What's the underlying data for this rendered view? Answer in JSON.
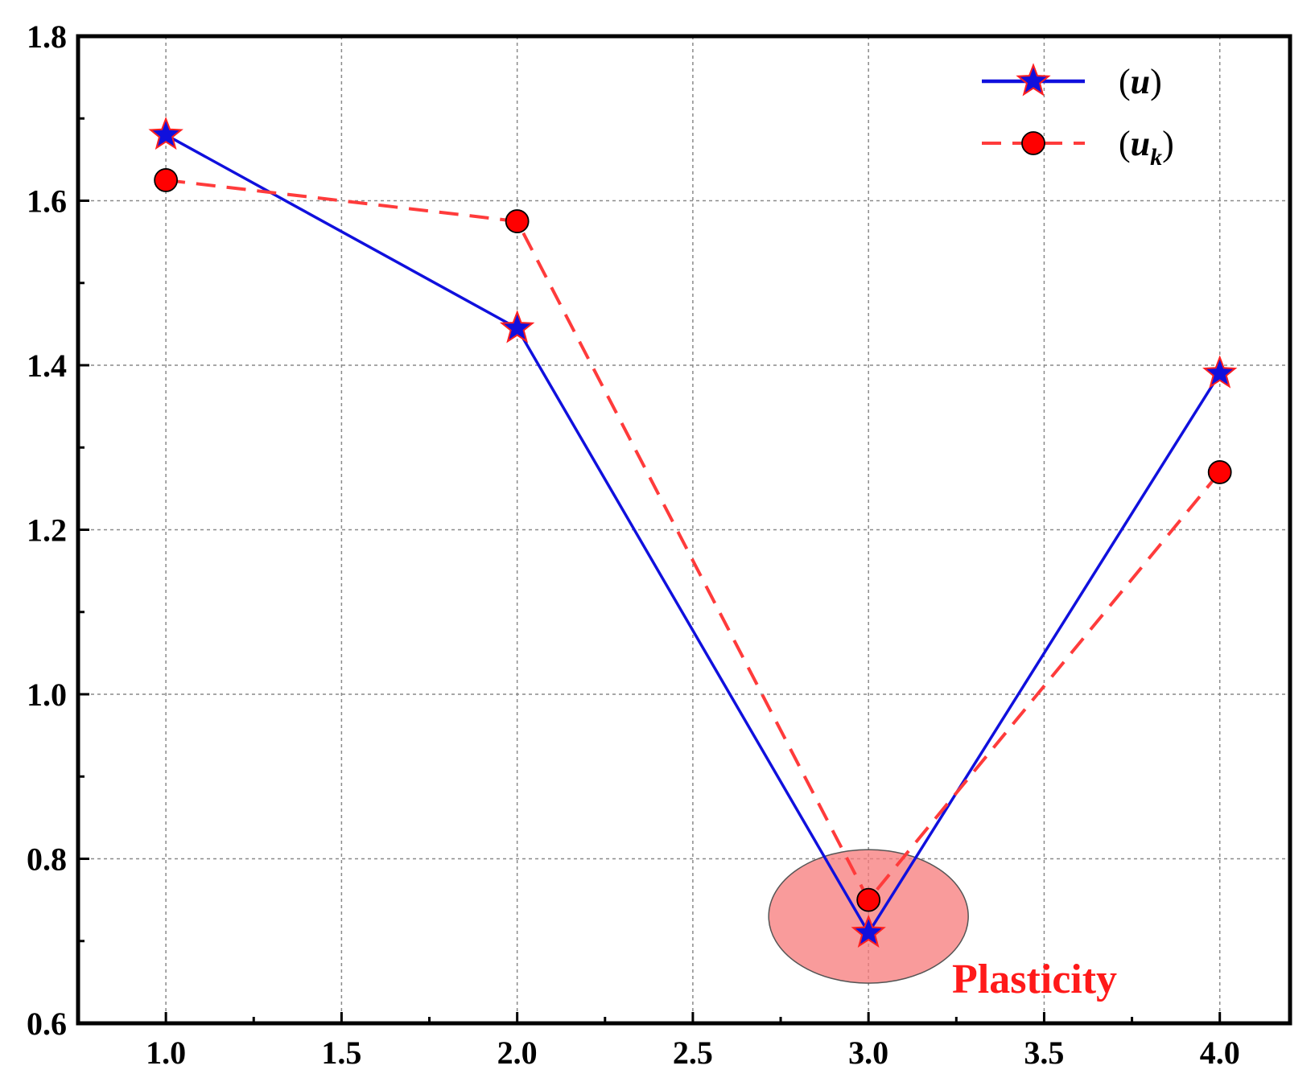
{
  "chart_data": {
    "type": "line",
    "title": "",
    "xlabel": "",
    "ylabel": "",
    "xlim": [
      0.75,
      4.2
    ],
    "ylim": [
      0.6,
      1.8
    ],
    "x_ticks": [
      1.0,
      1.5,
      2.0,
      2.5,
      3.0,
      3.5,
      4.0
    ],
    "x_tick_labels": [
      "1.0",
      "1.5",
      "2.0",
      "2.5",
      "3.0",
      "3.5",
      "4.0"
    ],
    "y_ticks": [
      0.6,
      0.8,
      1.0,
      1.2,
      1.4,
      1.6,
      1.8
    ],
    "y_tick_labels": [
      "0.6",
      "0.8",
      "1.0",
      "1.2",
      "1.4",
      "1.6",
      "1.8"
    ],
    "grid": true,
    "legend_position": "top-right",
    "series": [
      {
        "name": "(u)",
        "symbol": "u",
        "subscript": "",
        "style": "solid",
        "marker": "star",
        "color": "#1010dd",
        "marker_edge": "#ff2020",
        "x": [
          1.0,
          2.0,
          3.0,
          4.0
        ],
        "values": [
          1.68,
          1.445,
          0.71,
          1.39
        ]
      },
      {
        "name": "(u_k)",
        "symbol": "u",
        "subscript": "k",
        "style": "dashed",
        "marker": "circle",
        "color": "#ff3b3b",
        "marker_edge": "#000000",
        "x": [
          1.0,
          2.0,
          3.0,
          4.0
        ],
        "values": [
          1.625,
          1.575,
          0.75,
          1.27
        ]
      }
    ],
    "annotations": [
      {
        "text": "Plasticity",
        "x": 3.0,
        "y": 0.73,
        "color": "#ff1a1a",
        "highlight_color": "#f77a7a"
      }
    ]
  }
}
